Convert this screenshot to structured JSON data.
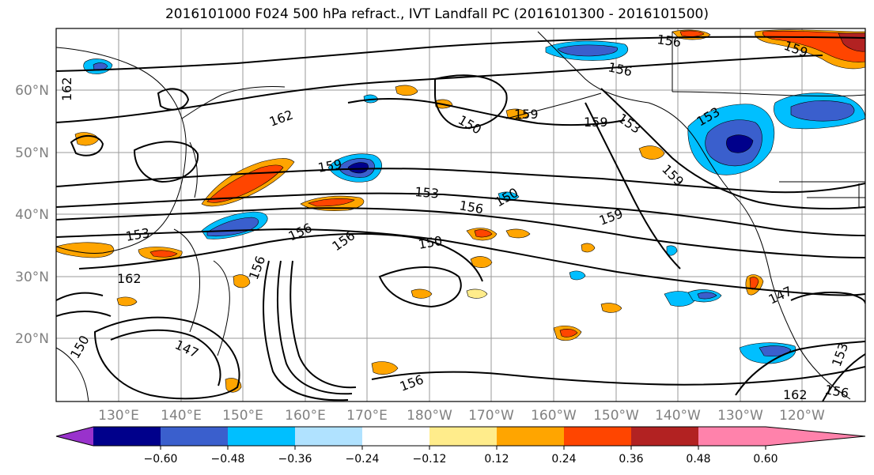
{
  "title": "2016101000 F024 500 hPa refract., IVT Landfall PC (2016101300 - 2016101500)",
  "lat_labels": [
    "60°N",
    "50°N",
    "40°N",
    "30°N",
    "20°N"
  ],
  "lon_labels": [
    "130°E",
    "140°E",
    "150°E",
    "160°E",
    "170°E",
    "180°W",
    "170°W",
    "160°W",
    "150°W",
    "140°W",
    "130°W",
    "120°W"
  ],
  "colorbar": {
    "tick_labels": [
      "−0.60",
      "−0.48",
      "−0.36",
      "−0.24",
      "−0.12",
      "0.12",
      "0.24",
      "0.36",
      "0.48",
      "0.60"
    ],
    "colors": [
      "#9932cc",
      "#00008b",
      "#3a5fcd",
      "#00bfff",
      "#b0e2ff",
      "#ffffff",
      "#ffec8b",
      "#ffa500",
      "#ff4500",
      "#b22222",
      "#ff82ab"
    ]
  },
  "contour_labels": [
    "162",
    "162",
    "159",
    "156",
    "156",
    "153",
    "159",
    "159",
    "153",
    "150",
    "159",
    "159",
    "156",
    "153",
    "150",
    "156",
    "156",
    "150",
    "153",
    "162",
    "147",
    "147",
    "156",
    "150",
    "156",
    "153",
    "162",
    "156",
    "159"
  ]
}
